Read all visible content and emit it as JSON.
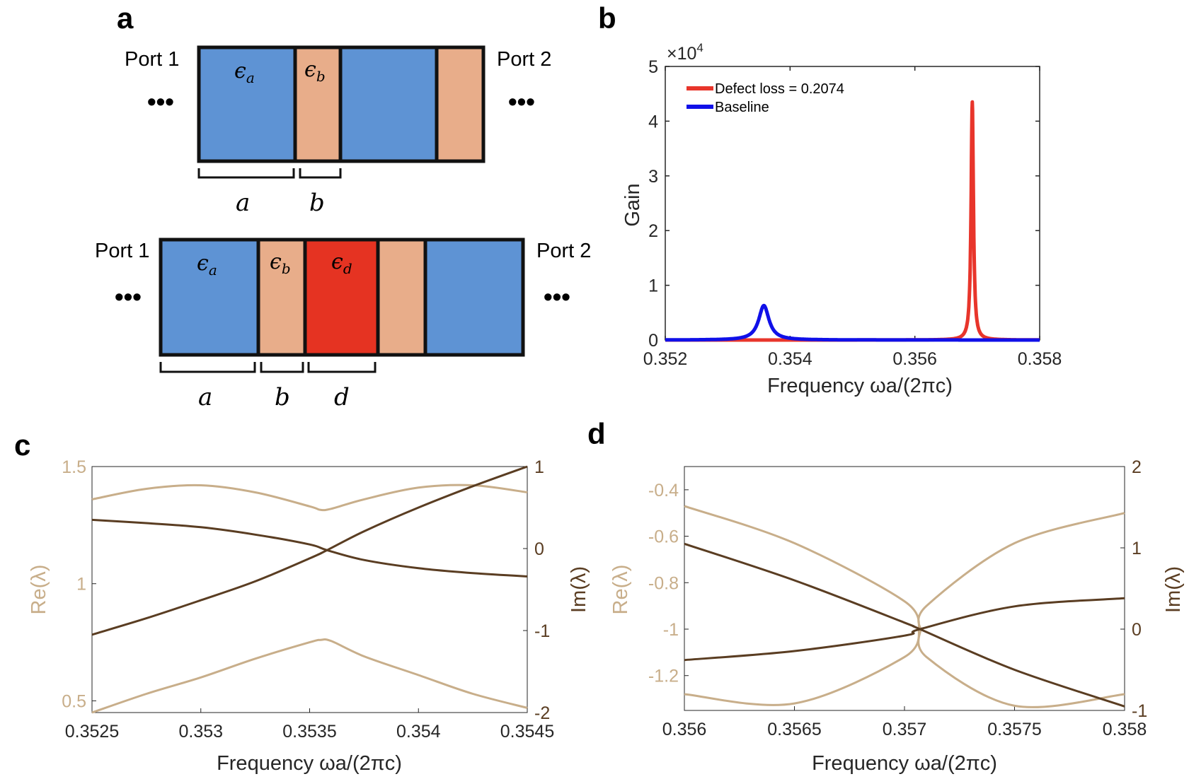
{
  "panels": {
    "a": {
      "letter": "a",
      "top": {
        "port_left": "Port 1",
        "port_right": "Port 2",
        "dots": "•••",
        "eps_a": "ϵ",
        "eps_a_sub": "a",
        "eps_b": "ϵ",
        "eps_b_sub": "b",
        "dim_a": "a",
        "dim_b": "b"
      },
      "bottom": {
        "port_left": "Port 1",
        "port_right": "Port 2",
        "dots": "•••",
        "eps_a": "ϵ",
        "eps_a_sub": "a",
        "eps_b": "ϵ",
        "eps_b_sub": "b",
        "eps_d": "ϵ",
        "eps_d_sub": "d",
        "dim_a": "a",
        "dim_b": "b",
        "dim_d": "d"
      },
      "colors": {
        "layer_a": "#5e93d4",
        "layer_b": "#e8ad8a",
        "layer_d": "#e53322"
      }
    },
    "b": {
      "letter": "b"
    },
    "c": {
      "letter": "c"
    },
    "d": {
      "letter": "d"
    }
  },
  "chart_data": [
    {
      "id": "b",
      "type": "line",
      "title": "",
      "xlabel": "Frequency ωa/(2πc)",
      "ylabel": "Gain",
      "y_exponent": "×10",
      "y_exponent_power": "4",
      "xlim": [
        0.352,
        0.358
      ],
      "ylim": [
        0,
        5
      ],
      "xticks": [
        "0.352",
        "0.354",
        "0.356",
        "0.358"
      ],
      "yticks": [
        "0",
        "1",
        "2",
        "3",
        "4",
        "5"
      ],
      "legend_position": "top-left",
      "series": [
        {
          "name": "Defect loss = 0.2074",
          "color": "#e8352b",
          "peak_x": 0.35692,
          "peak_y": 4.35,
          "width": 2.25e-05
        },
        {
          "name": "Baseline",
          "color": "#1010e8",
          "peak_x": 0.35358,
          "peak_y": 0.63,
          "width": 0.0001
        }
      ]
    },
    {
      "id": "c",
      "type": "line",
      "xlabel": "Frequency ωa/(2πc)",
      "ylabel_left": "Re(λ)",
      "ylabel_right": "Im(λ)",
      "xlim": [
        0.3525,
        0.3545
      ],
      "ylim_left": [
        0.45,
        1.5
      ],
      "ylim_right": [
        -2,
        1
      ],
      "xticks": [
        "0.3525",
        "0.353",
        "0.3535",
        "0.354",
        "0.3545"
      ],
      "yticks_left": [
        "0.5",
        "1",
        "1.5"
      ],
      "yticks_right": [
        "-2",
        "-1",
        "0",
        "1"
      ],
      "re_color": "#c8ae8a",
      "im_color": "#5a3d22",
      "re_series": [
        {
          "name": "Re upper",
          "x": [
            0.3525,
            0.35275,
            0.353,
            0.35325,
            0.3535,
            0.35355,
            0.3536,
            0.35375,
            0.354,
            0.35425,
            0.3545
          ],
          "y": [
            1.36,
            1.405,
            1.42,
            1.39,
            1.33,
            1.315,
            1.32,
            1.36,
            1.41,
            1.42,
            1.39
          ]
        },
        {
          "name": "Re lower",
          "x": [
            0.3525,
            0.35275,
            0.353,
            0.35325,
            0.3535,
            0.35355,
            0.3536,
            0.35375,
            0.354,
            0.35425,
            0.3545
          ],
          "y": [
            0.45,
            0.53,
            0.6,
            0.68,
            0.75,
            0.76,
            0.755,
            0.69,
            0.61,
            0.53,
            0.47
          ]
        }
      ],
      "im_series": [
        {
          "name": "Im decreasing",
          "x": [
            0.3525,
            0.35275,
            0.353,
            0.35325,
            0.3535,
            0.35358,
            0.35375,
            0.354,
            0.35425,
            0.3545
          ],
          "y": [
            0.35,
            0.31,
            0.26,
            0.17,
            0.05,
            -0.02,
            -0.14,
            -0.24,
            -0.3,
            -0.34
          ]
        },
        {
          "name": "Im increasing",
          "x": [
            0.3525,
            0.35275,
            0.353,
            0.35325,
            0.3535,
            0.35358,
            0.35375,
            0.354,
            0.35425,
            0.3545
          ],
          "y": [
            -1.05,
            -0.85,
            -0.63,
            -0.4,
            -0.12,
            -0.02,
            0.21,
            0.5,
            0.76,
            1.0
          ]
        }
      ]
    },
    {
      "id": "d",
      "type": "line",
      "xlabel": "Frequency ωa/(2πc)",
      "ylabel_left": "Re(λ)",
      "ylabel_right": "Im(λ)",
      "xlim": [
        0.356,
        0.358
      ],
      "ylim_left": [
        -1.35,
        -0.3
      ],
      "ylim_right": [
        -1,
        2
      ],
      "xticks": [
        "0.356",
        "0.3565",
        "0.357",
        "0.3575",
        "0.358"
      ],
      "yticks_left": [
        "-0.4",
        "-0.6",
        "-0.8",
        "-1",
        "-1.2"
      ],
      "yticks_right": [
        "2",
        "1",
        "0",
        "-1"
      ],
      "re_color": "#c8ae8a",
      "im_color": "#5a3d22",
      "exceptional_point": 0.35707,
      "re_series": [
        {
          "name": "Re upper branch",
          "x": [
            0.356,
            0.3565,
            0.357,
            0.35707,
            0.3571,
            0.3575,
            0.358
          ],
          "y": [
            -0.47,
            -0.63,
            -0.88,
            -1.0,
            -0.9,
            -0.63,
            -0.5
          ]
        },
        {
          "name": "Re lower branch",
          "x": [
            0.356,
            0.3565,
            0.357,
            0.35707,
            0.3571,
            0.3575,
            0.358
          ],
          "y": [
            -1.28,
            -1.32,
            -1.12,
            -1.0,
            -1.12,
            -1.33,
            -1.28
          ]
        }
      ],
      "im_series": [
        {
          "name": "Im decreasing",
          "x": [
            0.356,
            0.3565,
            0.357,
            0.35707,
            0.3575,
            0.358
          ],
          "y": [
            1.05,
            0.6,
            0.08,
            0.0,
            -0.5,
            -0.95
          ]
        },
        {
          "name": "Im increasing",
          "x": [
            0.356,
            0.3565,
            0.357,
            0.35707,
            0.3575,
            0.358
          ],
          "y": [
            -0.38,
            -0.27,
            -0.08,
            0.0,
            0.28,
            0.38
          ]
        }
      ]
    }
  ]
}
